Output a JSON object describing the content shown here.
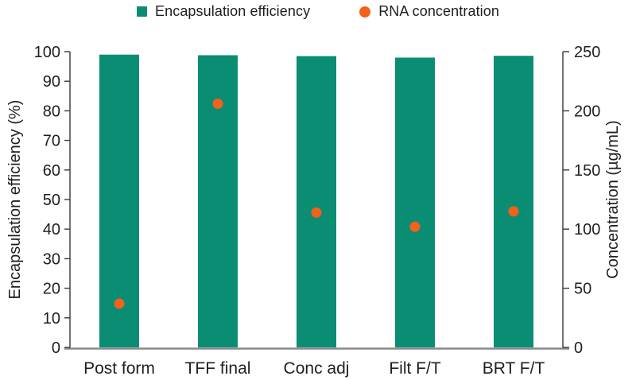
{
  "chart_data": {
    "type": "bar",
    "title": "",
    "categories": [
      "Post form",
      "TFF final",
      "Conc adj",
      "Filt F/T",
      "BRT F/T"
    ],
    "series": [
      {
        "name": "Encapsulation efficiency",
        "type": "bar",
        "axis": "left",
        "marker": "square",
        "color": "#0b8d74",
        "values": [
          99.0,
          98.8,
          98.5,
          98.0,
          98.6
        ]
      },
      {
        "name": "RNA concentration",
        "type": "scatter",
        "axis": "right",
        "marker": "circle",
        "color": "#f3611a",
        "values": [
          37,
          206,
          114,
          102,
          115
        ]
      }
    ],
    "left_axis": {
      "label": "Encapsulation efficiency (%)",
      "min": 0,
      "max": 100,
      "ticks": [
        0,
        10,
        20,
        30,
        40,
        50,
        60,
        70,
        80,
        90,
        100
      ]
    },
    "right_axis": {
      "label": "Concentration (µg/mL)",
      "min": 0,
      "max": 250,
      "ticks": [
        0,
        50,
        100,
        150,
        200,
        250
      ]
    },
    "grid": false,
    "legend_position": "top",
    "colors": {
      "axis_line": "#444444",
      "baseline": "#8a8a8a",
      "text": "#1f1f1f",
      "background": "#ffffff"
    }
  }
}
